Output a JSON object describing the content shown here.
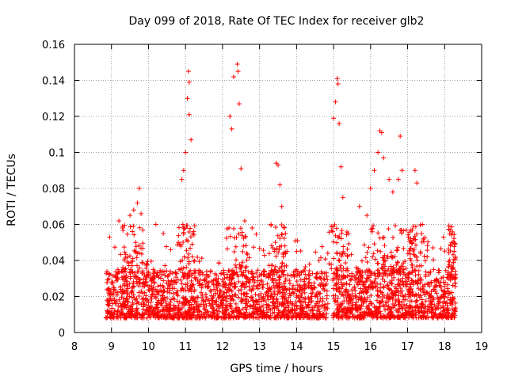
{
  "chart_data": {
    "type": "scatter",
    "title": "Day 099 of 2018, Rate Of TEC Index for receiver glb2",
    "xlabel": "GPS time / hours",
    "ylabel": "ROTI / TECUs",
    "xlim": [
      8,
      19
    ],
    "ylim": [
      0,
      0.16
    ],
    "xticks": [
      "8",
      "9",
      "10",
      "11",
      "12",
      "13",
      "14",
      "15",
      "16",
      "17",
      "18",
      "19"
    ],
    "yticks": [
      "0",
      "0.02",
      "0.04",
      "0.06",
      "0.08",
      "0.1",
      "0.12",
      "0.14",
      "0.16"
    ],
    "grid": true,
    "marker": "+",
    "color": "#ff0000",
    "x_range_data": [
      8.85,
      18.3
    ],
    "baseline_band": [
      0.008,
      0.035
    ],
    "series": [
      {
        "name": "ROTI",
        "points": [
          [
            9.2,
            0.062
          ],
          [
            9.3,
            0.058
          ],
          [
            9.5,
            0.065
          ],
          [
            9.6,
            0.068
          ],
          [
            9.7,
            0.072
          ],
          [
            9.75,
            0.08
          ],
          [
            9.8,
            0.066
          ],
          [
            10.2,
            0.06
          ],
          [
            10.4,
            0.055
          ],
          [
            10.9,
            0.085
          ],
          [
            10.95,
            0.09
          ],
          [
            11.0,
            0.1
          ],
          [
            11.05,
            0.13
          ],
          [
            11.08,
            0.145
          ],
          [
            11.1,
            0.139
          ],
          [
            11.1,
            0.121
          ],
          [
            11.15,
            0.107
          ],
          [
            11.2,
            0.055
          ],
          [
            12.2,
            0.12
          ],
          [
            12.25,
            0.113
          ],
          [
            12.3,
            0.142
          ],
          [
            12.4,
            0.149
          ],
          [
            12.42,
            0.145
          ],
          [
            12.45,
            0.127
          ],
          [
            12.5,
            0.091
          ],
          [
            12.6,
            0.062
          ],
          [
            12.8,
            0.058
          ],
          [
            13.45,
            0.094
          ],
          [
            13.5,
            0.093
          ],
          [
            13.55,
            0.082
          ],
          [
            13.6,
            0.07
          ],
          [
            13.7,
            0.055
          ],
          [
            14.0,
            0.045
          ],
          [
            15.0,
            0.119
          ],
          [
            15.05,
            0.128
          ],
          [
            15.1,
            0.141
          ],
          [
            15.12,
            0.138
          ],
          [
            15.15,
            0.116
          ],
          [
            15.2,
            0.092
          ],
          [
            15.25,
            0.075
          ],
          [
            15.4,
            0.055
          ],
          [
            15.7,
            0.07
          ],
          [
            15.9,
            0.065
          ],
          [
            16.0,
            0.08
          ],
          [
            16.1,
            0.09
          ],
          [
            16.2,
            0.1
          ],
          [
            16.25,
            0.112
          ],
          [
            16.3,
            0.111
          ],
          [
            16.35,
            0.097
          ],
          [
            16.5,
            0.085
          ],
          [
            16.6,
            0.078
          ],
          [
            16.75,
            0.085
          ],
          [
            16.8,
            0.109
          ],
          [
            16.85,
            0.09
          ],
          [
            17.2,
            0.09
          ],
          [
            17.25,
            0.083
          ],
          [
            17.4,
            0.06
          ]
        ]
      }
    ]
  }
}
